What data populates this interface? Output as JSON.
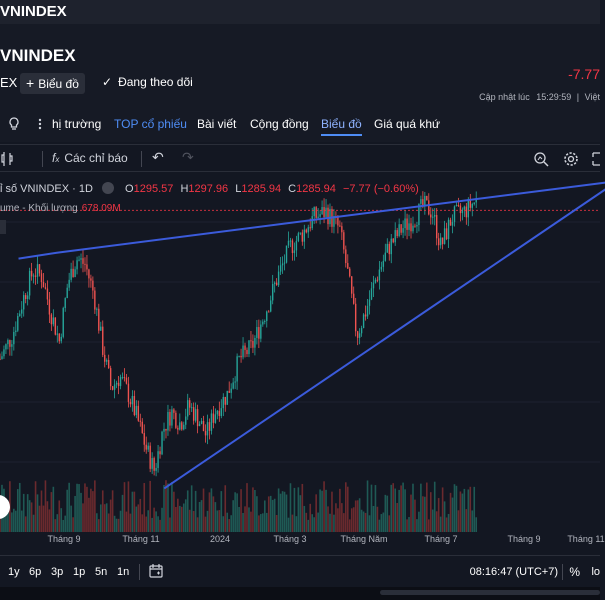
{
  "topbar": {
    "title": "VNINDEX"
  },
  "header": {
    "title": "VNINDEX",
    "ticker_cut": "EX",
    "chart_button": "Biểu đồ",
    "follow_button": "Đang theo dõi",
    "price_change": "-7.77",
    "updated_label": "Cập nhật lúc",
    "updated_time": "15:29:59",
    "updated_sep": "|",
    "updated_suffix": "Việt"
  },
  "tabs": {
    "items": [
      {
        "label": "hị trường"
      },
      {
        "label": "TOP cổ phiếu"
      },
      {
        "label": "Bài viết"
      },
      {
        "label": "Cộng đồng"
      },
      {
        "label": "Biểu đồ"
      },
      {
        "label": "Giá quá khứ"
      }
    ]
  },
  "toolbar": {
    "indicators": "Các chỉ báo"
  },
  "legend": {
    "symbol": "ỉ số VNINDEX · 1D",
    "open_key": "O",
    "open": "1295.57",
    "high_key": "H",
    "high": "1297.96",
    "low_key": "L",
    "low": "1285.94",
    "close_key": "C",
    "close": "1285.94",
    "change": "−7.77 (−0.60%)",
    "volume_label": "ume - Khối lượng",
    "volume_value": "678.09M"
  },
  "xaxis": {
    "labels": [
      "Tháng 9",
      "Tháng 11",
      "2024",
      "Tháng 3",
      "Tháng Năm",
      "Tháng 7",
      "Tháng 9",
      "Tháng 11"
    ]
  },
  "bottombar": {
    "ranges": [
      "1y",
      "6p",
      "3p",
      "1p",
      "5n",
      "1n"
    ],
    "clock": "08:16:47 (UTC+7)",
    "percent": "%",
    "log": "lo"
  },
  "colors": {
    "background": "#131722",
    "up": "#26a69a",
    "down": "#ef5350",
    "trendline": "#3b5bdb",
    "price_line": "#f23645"
  },
  "chart_data": {
    "type": "candlestick",
    "interval": "1D",
    "x_range": [
      "2023-07",
      "2024-11"
    ],
    "y_range_approx": [
      1030,
      1300
    ],
    "last_close": 1285.94,
    "trendlines": [
      {
        "name": "upper",
        "points": [
          [
            "2023-07-20",
            1245
          ],
          [
            "2023-08-20",
            1250
          ],
          [
            "2024-11-10",
            1310
          ]
        ]
      },
      {
        "name": "lower",
        "points": [
          [
            "2023-11-15",
            1050
          ],
          [
            "2024-11-15",
            1310
          ]
        ]
      }
    ],
    "close_series": [
      [
        "2023-07-05",
        1160
      ],
      [
        "2023-07-15",
        1180
      ],
      [
        "2023-07-25",
        1215
      ],
      [
        "2023-08-01",
        1235
      ],
      [
        "2023-08-08",
        1230
      ],
      [
        "2023-08-15",
        1200
      ],
      [
        "2023-08-22",
        1175
      ],
      [
        "2023-08-29",
        1225
      ],
      [
        "2023-09-05",
        1245
      ],
      [
        "2023-09-12",
        1240
      ],
      [
        "2023-09-19",
        1215
      ],
      [
        "2023-09-26",
        1170
      ],
      [
        "2023-10-03",
        1135
      ],
      [
        "2023-10-10",
        1145
      ],
      [
        "2023-10-17",
        1130
      ],
      [
        "2023-10-24",
        1110
      ],
      [
        "2023-10-31",
        1085
      ],
      [
        "2023-11-07",
        1065
      ],
      [
        "2023-11-14",
        1100
      ],
      [
        "2023-11-21",
        1115
      ],
      [
        "2023-11-28",
        1105
      ],
      [
        "2023-12-05",
        1120
      ],
      [
        "2023-12-12",
        1110
      ],
      [
        "2023-12-19",
        1095
      ],
      [
        "2023-12-26",
        1115
      ],
      [
        "2024-01-05",
        1130
      ],
      [
        "2024-01-15",
        1160
      ],
      [
        "2024-01-25",
        1170
      ],
      [
        "2024-02-05",
        1200
      ],
      [
        "2024-02-15",
        1230
      ],
      [
        "2024-02-25",
        1255
      ],
      [
        "2024-03-05",
        1265
      ],
      [
        "2024-03-15",
        1280
      ],
      [
        "2024-03-25",
        1285
      ],
      [
        "2024-04-05",
        1270
      ],
      [
        "2024-04-12",
        1230
      ],
      [
        "2024-04-19",
        1180
      ],
      [
        "2024-04-26",
        1200
      ],
      [
        "2024-05-05",
        1230
      ],
      [
        "2024-05-15",
        1255
      ],
      [
        "2024-05-25",
        1270
      ],
      [
        "2024-06-05",
        1280
      ],
      [
        "2024-06-12",
        1290
      ],
      [
        "2024-06-19",
        1285
      ],
      [
        "2024-06-26",
        1255
      ],
      [
        "2024-07-05",
        1280
      ],
      [
        "2024-07-15",
        1285
      ],
      [
        "2024-07-25",
        1295
      ]
    ]
  }
}
